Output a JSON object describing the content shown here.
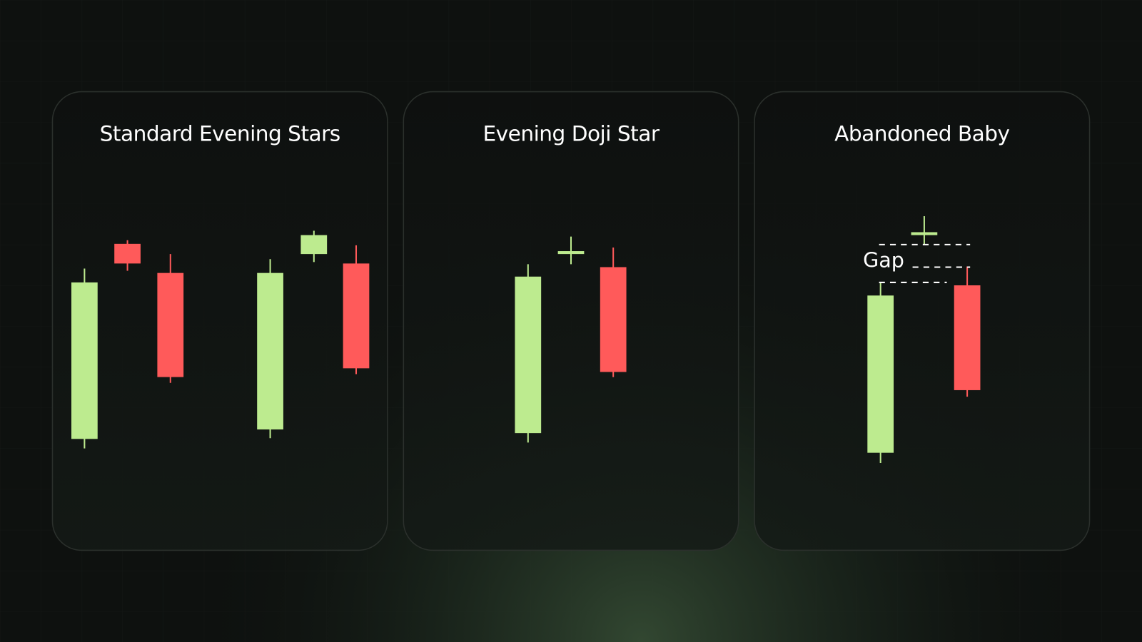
{
  "panels": [
    {
      "title": "Standard Evening Stars"
    },
    {
      "title": "Evening Doji Star"
    },
    {
      "title": "Abandoned Baby",
      "annotation": "Gap"
    }
  ]
}
